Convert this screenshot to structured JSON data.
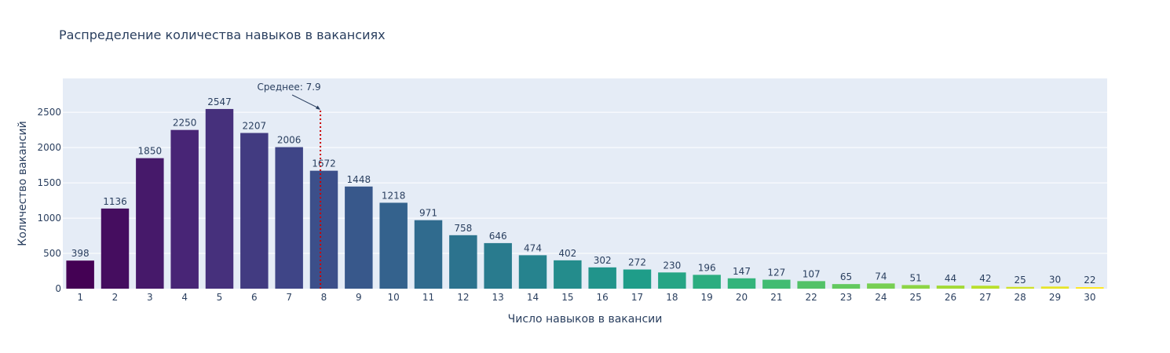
{
  "chart_data": {
    "type": "bar",
    "title": "Распределение количества навыков в вакансиях",
    "xlabel": "Число навыков в вакансии",
    "ylabel": "Количество вакансий",
    "categories": [
      "1",
      "2",
      "3",
      "4",
      "5",
      "6",
      "7",
      "8",
      "9",
      "10",
      "11",
      "12",
      "13",
      "14",
      "15",
      "16",
      "17",
      "18",
      "19",
      "20",
      "21",
      "22",
      "23",
      "24",
      "25",
      "26",
      "27",
      "28",
      "29",
      "30"
    ],
    "values": [
      398,
      1136,
      1850,
      2250,
      2547,
      2207,
      2006,
      1672,
      1448,
      1218,
      971,
      758,
      646,
      474,
      402,
      302,
      272,
      230,
      196,
      147,
      127,
      107,
      65,
      74,
      51,
      44,
      42,
      25,
      30,
      22
    ],
    "ylim": [
      0,
      2980
    ],
    "yticks": [
      0,
      500,
      1000,
      1500,
      2000,
      2500
    ],
    "grid": true,
    "colorscale": "viridis",
    "mean_line": {
      "x": 7.9,
      "label": "Среднее: 7.9",
      "color": "#cc0000",
      "style": "dotted"
    }
  }
}
